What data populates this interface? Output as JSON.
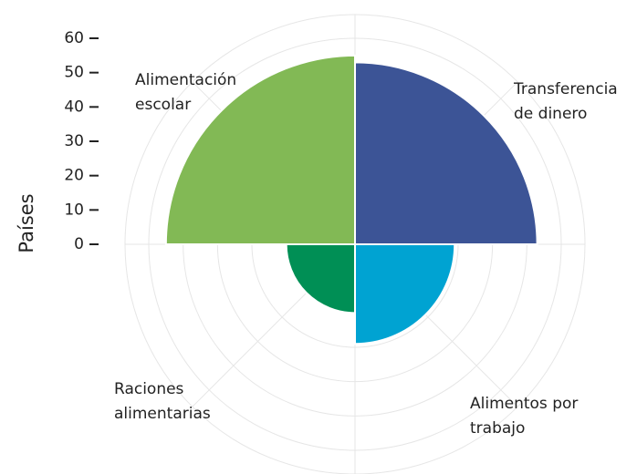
{
  "chart_data": {
    "type": "polar_area",
    "y_label": "Países",
    "categories": [
      "Transferencia de dinero",
      "Alimentos por trabajo",
      "Raciones alimentarias",
      "Alimentación escolar"
    ],
    "values": [
      53,
      29,
      20,
      55
    ],
    "colors": [
      "#3c5496",
      "#00a3d2",
      "#008f55",
      "#82b955"
    ],
    "ylim": [
      0,
      60
    ],
    "yticks": [
      0,
      10,
      20,
      30,
      40,
      50,
      60
    ],
    "grid": true
  }
}
